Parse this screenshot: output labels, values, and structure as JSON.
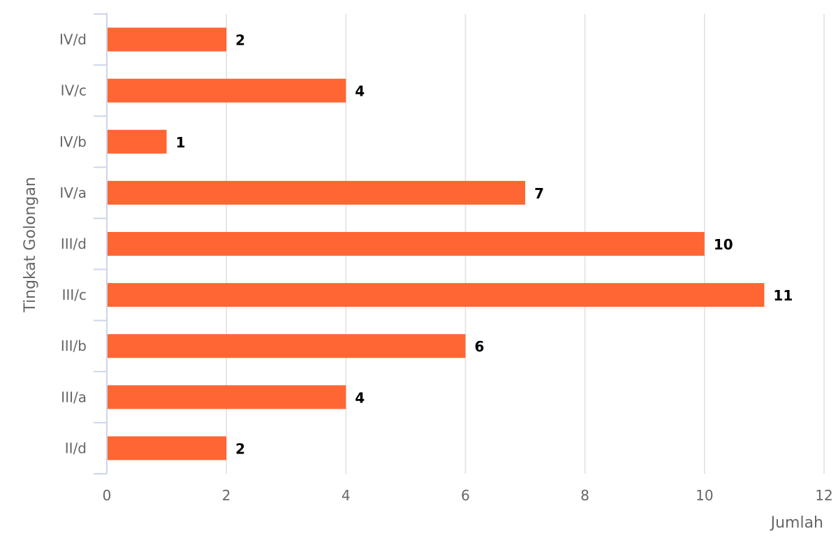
{
  "chart_data": {
    "type": "bar",
    "orientation": "horizontal",
    "categories": [
      "IV/d",
      "IV/c",
      "IV/b",
      "IV/a",
      "III/d",
      "III/c",
      "III/b",
      "III/a",
      "II/d"
    ],
    "values": [
      2,
      4,
      1,
      7,
      10,
      11,
      6,
      4,
      2
    ],
    "xlabel": "Jumlah",
    "ylabel": "Tingkat Golongan",
    "xlim": [
      0,
      12
    ],
    "xticks": [
      0,
      2,
      4,
      6,
      8,
      10,
      12
    ],
    "grid": true,
    "data_labels": true,
    "colors": {
      "bar": "#FF6633",
      "grid": "#E0E0E0",
      "axis": "#CCD6EB",
      "tick_text": "#666666",
      "data_label": "#000000"
    }
  }
}
